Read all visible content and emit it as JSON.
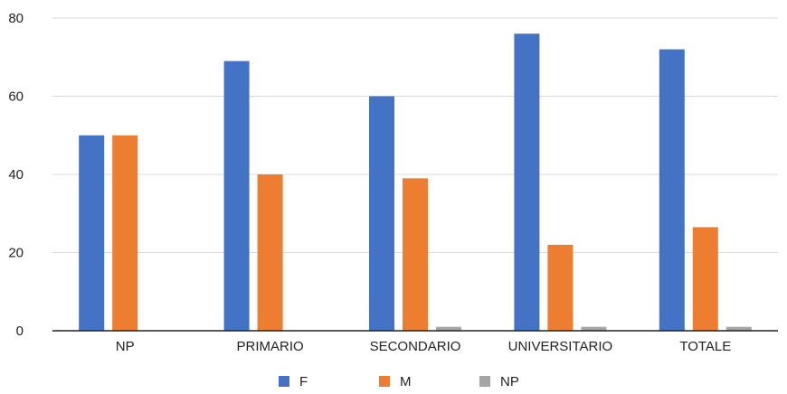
{
  "chart_data": {
    "type": "bar",
    "title": "",
    "xlabel": "",
    "ylabel": "",
    "ylim": [
      0,
      80
    ],
    "yticks": [
      0,
      20,
      40,
      60,
      80
    ],
    "grid": true,
    "legend_position": "bottom",
    "categories": [
      "NP",
      "PRIMARIO",
      "SECONDARIO",
      "UNIVERSITARIO",
      "TOTALE"
    ],
    "series": [
      {
        "name": "F",
        "color": "#4472C4",
        "values": [
          50,
          69,
          60,
          76,
          72
        ]
      },
      {
        "name": "M",
        "color": "#ED7D31",
        "values": [
          50,
          40,
          39,
          22,
          26.5
        ]
      },
      {
        "name": "NP",
        "color": "#A5A5A5",
        "values": [
          0,
          0,
          1,
          1,
          1
        ]
      }
    ]
  }
}
